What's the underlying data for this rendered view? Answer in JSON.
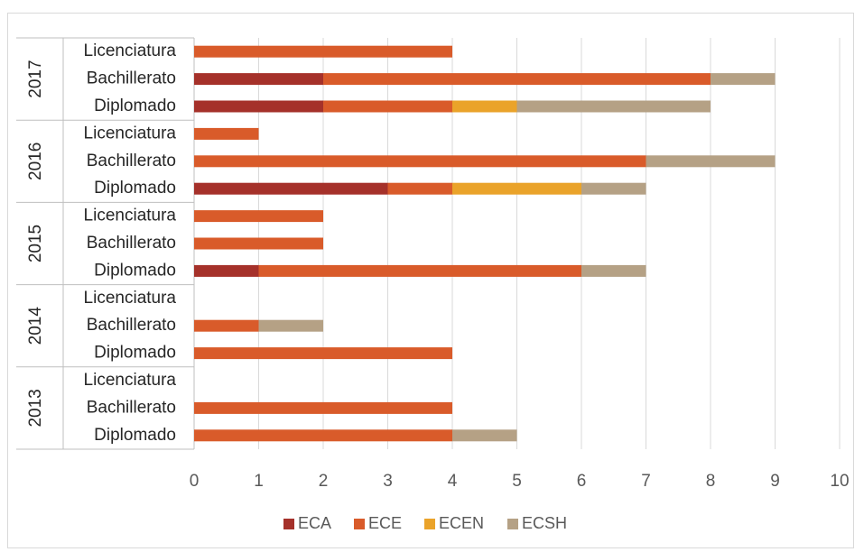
{
  "chart_data": {
    "type": "bar",
    "orientation": "horizontal",
    "stacked": true,
    "groups": [
      {
        "year": "2017",
        "categories": [
          {
            "label": "Licenciatura",
            "values": [
              0,
              4,
              0,
              0
            ]
          },
          {
            "label": "Bachillerato",
            "values": [
              2,
              6,
              0,
              1
            ]
          },
          {
            "label": "Diplomado",
            "values": [
              2,
              2,
              1,
              3
            ]
          }
        ]
      },
      {
        "year": "2016",
        "categories": [
          {
            "label": "Licenciatura",
            "values": [
              0,
              1,
              0,
              0
            ]
          },
          {
            "label": "Bachillerato",
            "values": [
              0,
              7,
              0,
              2
            ]
          },
          {
            "label": "Diplomado",
            "values": [
              3,
              1,
              2,
              1
            ]
          }
        ]
      },
      {
        "year": "2015",
        "categories": [
          {
            "label": "Licenciatura",
            "values": [
              0,
              2,
              0,
              0
            ]
          },
          {
            "label": "Bachillerato",
            "values": [
              0,
              2,
              0,
              0
            ]
          },
          {
            "label": "Diplomado",
            "values": [
              1,
              5,
              0,
              1
            ]
          }
        ]
      },
      {
        "year": "2014",
        "categories": [
          {
            "label": "Licenciatura",
            "values": [
              0,
              0,
              0,
              0
            ]
          },
          {
            "label": "Bachillerato",
            "values": [
              0,
              1,
              0,
              1
            ]
          },
          {
            "label": "Diplomado",
            "values": [
              0,
              4,
              0,
              0
            ]
          }
        ]
      },
      {
        "year": "2013",
        "categories": [
          {
            "label": "Licenciatura",
            "values": [
              0,
              0,
              0,
              0
            ]
          },
          {
            "label": "Bachillerato",
            "values": [
              0,
              4,
              0,
              0
            ]
          },
          {
            "label": "Diplomado",
            "values": [
              0,
              4,
              0,
              1
            ]
          }
        ]
      }
    ],
    "series": [
      {
        "name": "ECA",
        "color": "#a5312a"
      },
      {
        "name": "ECE",
        "color": "#d95b2a"
      },
      {
        "name": "ECEN",
        "color": "#eaa32a"
      },
      {
        "name": "ECSH",
        "color": "#b5a185"
      }
    ],
    "xlim": [
      0,
      10
    ],
    "xticks": [
      "0",
      "1",
      "2",
      "3",
      "4",
      "5",
      "6",
      "7",
      "8",
      "9",
      "10"
    ],
    "grid": true,
    "legend_position": "bottom"
  }
}
